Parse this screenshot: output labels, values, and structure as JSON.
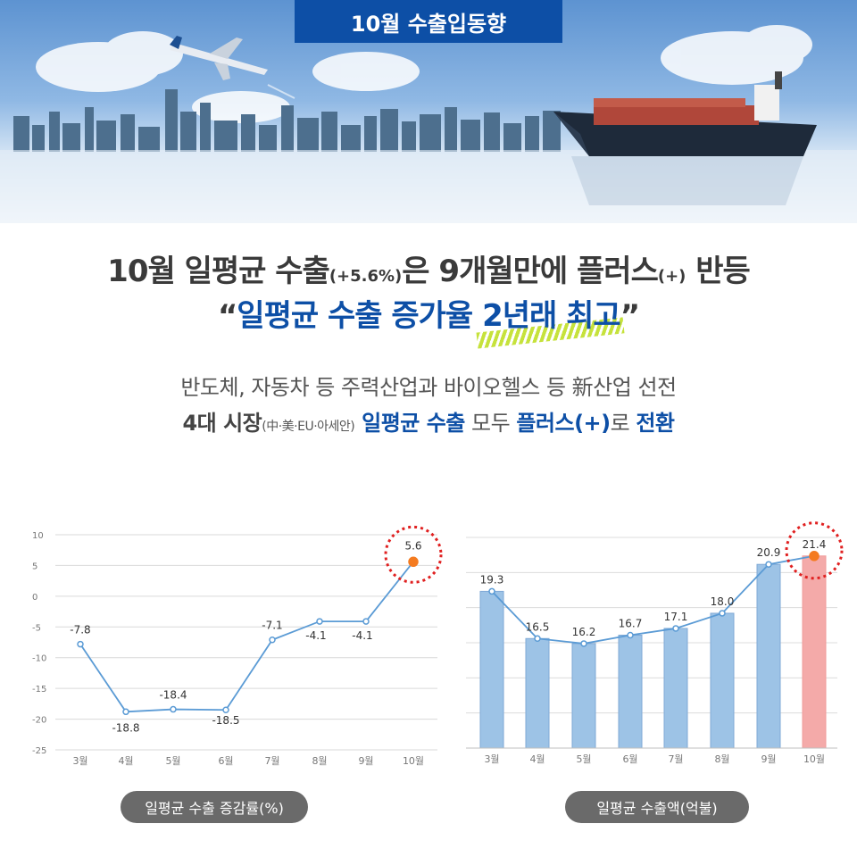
{
  "header": {
    "tab_title": "10월 수출입동향"
  },
  "headline": {
    "line1_a": "10월 일평균 수출",
    "line1_b": "(+5.6%)",
    "line1_c": "은 9개월만에 플러스",
    "line1_d": "(+)",
    "line1_e": " 반등",
    "line2_open": "“",
    "line2_blue_a": "일평균 수출 증가율 ",
    "line2_blue_hl": "2년래 최고",
    "line2_close": "”"
  },
  "subtitle": {
    "line1": "반도체, 자동차 등 주력산업과 바이오헬스 등 新산업 선전",
    "line2_a": "4대 시장",
    "line2_b": "(中·美·EU·아세안)",
    "line2_c": " 일평균 수출",
    "line2_d": " 모두 ",
    "line2_e": "플러스(+)",
    "line2_f": "로 ",
    "line2_g": "전환"
  },
  "colors": {
    "brand_blue": "#0d4fa6",
    "line": "#5b9bd5",
    "bar": "#9dc3e6",
    "bar_highlight": "#f4aaa9",
    "marker_highlight": "#f47b20",
    "circle": "#e02020"
  },
  "chart_data": [
    {
      "type": "line",
      "title": "일평균 수출 증감률(%)",
      "categories": [
        "3월",
        "4월",
        "5월",
        "6월",
        "7월",
        "8월",
        "9월",
        "10월"
      ],
      "values": [
        -7.8,
        -18.8,
        -18.4,
        -18.5,
        -7.1,
        -4.1,
        -4.1,
        5.6
      ],
      "value_labels": [
        "-7.8",
        "-18.8",
        "-18.4",
        "-18.5",
        "-7.1",
        "-4.1",
        "-4.1",
        "5.6"
      ],
      "ylim": [
        -25,
        10
      ],
      "yticks": [
        10,
        5,
        0,
        -5,
        -10,
        -15,
        -20,
        -25
      ],
      "grid": true,
      "highlight_index": 7
    },
    {
      "type": "bar",
      "title": "일평균 수출액(억불)",
      "categories": [
        "3월",
        "4월",
        "5월",
        "6월",
        "7월",
        "8월",
        "9월",
        "10월"
      ],
      "values": [
        19.3,
        16.5,
        16.2,
        16.7,
        17.1,
        18.0,
        20.9,
        21.4
      ],
      "value_labels": [
        "19.3",
        "16.5",
        "16.2",
        "16.7",
        "17.1",
        "18.0",
        "20.9",
        "21.4"
      ],
      "overlay_line": true,
      "grid": true,
      "highlight_index": 7
    }
  ]
}
